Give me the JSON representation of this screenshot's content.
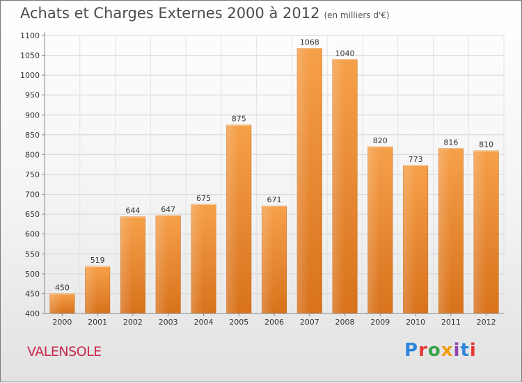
{
  "chart_data": {
    "type": "bar",
    "title": "Achats et Charges Externes 2000 à 2012",
    "subtitle": "(en milliers d'€)",
    "categories": [
      "2000",
      "2001",
      "2002",
      "2003",
      "2004",
      "2005",
      "2006",
      "2007",
      "2008",
      "2009",
      "2010",
      "2011",
      "2012"
    ],
    "values": [
      450,
      519,
      644,
      647,
      675,
      875,
      671,
      1068,
      1040,
      820,
      773,
      816,
      810
    ],
    "ylim": [
      400,
      1100
    ],
    "yticks": [
      400,
      450,
      500,
      550,
      600,
      650,
      700,
      750,
      800,
      850,
      900,
      950,
      1000,
      1050,
      1100
    ],
    "xlabel": "",
    "ylabel": "",
    "grid": true,
    "bar_color": "#f08c2e"
  },
  "location": "VALENSOLE",
  "brand": {
    "name": "Proxiti",
    "letters": [
      "P",
      "r",
      "o",
      "x",
      "i",
      "t",
      "i"
    ]
  }
}
